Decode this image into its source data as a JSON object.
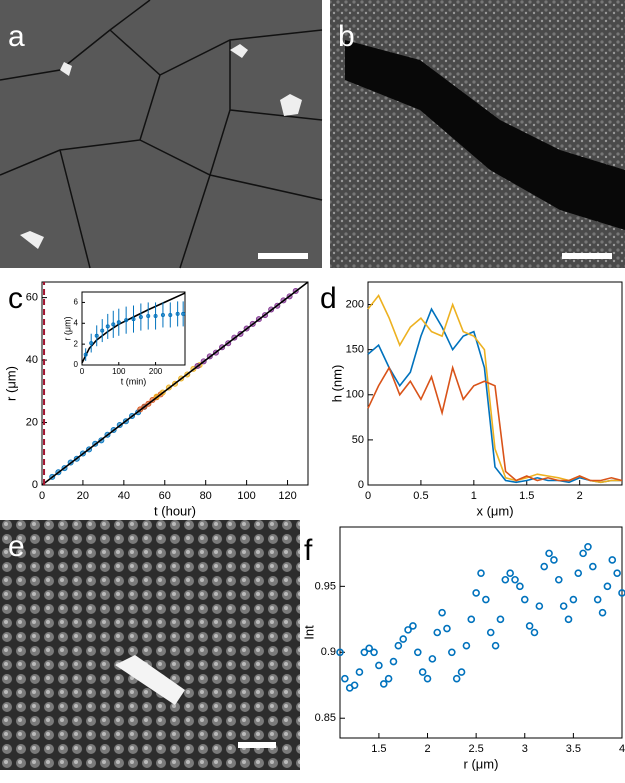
{
  "panel_labels": [
    "a",
    "b",
    "c",
    "d",
    "e",
    "f"
  ],
  "chart_data": [
    {
      "type": "scatter",
      "xlabel": "t (hour)",
      "ylabel": "r (μm)",
      "xlim": [
        0,
        130
      ],
      "xticks": [
        0,
        20,
        40,
        60,
        80,
        100,
        120
      ],
      "ylim": [
        0,
        65
      ],
      "yticks": [
        0,
        20,
        40,
        60
      ],
      "series": [
        {
          "color": "#0072bd",
          "style": "markers",
          "x": [
            5,
            8,
            11,
            14,
            17,
            20,
            23,
            26,
            29,
            32,
            35,
            38,
            41,
            44,
            47,
            50
          ],
          "values": [
            2.6,
            4.1,
            5.4,
            7.2,
            8.4,
            10.1,
            11.4,
            13.2,
            14.3,
            16.1,
            17.6,
            19.2,
            20.4,
            22.1,
            23.3,
            25.0
          ]
        },
        {
          "color": "#d95319",
          "style": "markers",
          "x": [
            48,
            50,
            52,
            54,
            56,
            58
          ],
          "values": [
            24.2,
            25.1,
            26.0,
            27.2,
            28.1,
            29.0
          ]
        },
        {
          "color": "#edb120",
          "style": "markers",
          "x": [
            56,
            59,
            62,
            65,
            68,
            71,
            74,
            77
          ],
          "values": [
            28.3,
            29.6,
            31.2,
            32.4,
            34.1,
            35.4,
            37.2,
            38.4
          ]
        },
        {
          "color": "#7e2f8e",
          "style": "markers",
          "x": [
            76,
            79,
            82,
            85,
            88,
            91,
            94,
            97,
            100,
            103,
            106,
            109,
            112,
            115,
            118,
            121,
            124
          ],
          "values": [
            38.1,
            39.6,
            41.2,
            42.4,
            44.1,
            45.4,
            47.2,
            48.4,
            50.1,
            51.6,
            53.1,
            54.4,
            56.2,
            57.4,
            59.1,
            60.4,
            62.1
          ]
        },
        {
          "color": "#000000",
          "style": "line",
          "x": [
            0,
            130
          ],
          "values": [
            0,
            65
          ]
        },
        {
          "color": "#a2142f",
          "style": "dashed",
          "x": [
            1,
            1
          ],
          "values": [
            0,
            65
          ]
        }
      ]
    },
    {
      "type": "scatter",
      "xlabel": "t (min)",
      "ylabel": "r (μm)",
      "xlim": [
        0,
        280
      ],
      "xticks": [
        0,
        100,
        200
      ],
      "ylim": [
        0,
        7
      ],
      "yticks": [
        0,
        2,
        4,
        6
      ],
      "series": [
        {
          "color": "#000000",
          "style": "line",
          "x": [
            0,
            20,
            40,
            70,
            100,
            140,
            180,
            230,
            280
          ],
          "values": [
            0.2,
            1.6,
            2.4,
            3.2,
            3.9,
            4.6,
            5.3,
            6.1,
            6.9
          ]
        },
        {
          "color": "#0072bd",
          "style": "markers",
          "x": [
            10,
            25,
            40,
            55,
            70,
            85,
            100,
            120,
            140,
            160,
            180,
            200,
            220,
            240,
            260,
            275
          ],
          "values": [
            1.0,
            2.1,
            2.8,
            3.3,
            3.7,
            3.9,
            4.1,
            4.3,
            4.4,
            4.6,
            4.7,
            4.7,
            4.8,
            4.8,
            4.9,
            4.9
          ],
          "errors": [
            0.6,
            0.9,
            1.0,
            1.1,
            1.2,
            1.3,
            1.3,
            1.3,
            1.3,
            1.3,
            1.3,
            1.3,
            1.2,
            1.2,
            1.2,
            1.2
          ]
        }
      ]
    },
    {
      "type": "line",
      "xlabel": "x (μm)",
      "ylabel": "h (nm)",
      "xlim": [
        0,
        2.4
      ],
      "xticks": [
        0,
        0.5,
        1,
        1.5,
        2
      ],
      "ylim": [
        0,
        225
      ],
      "yticks": [
        0,
        50,
        100,
        150,
        200
      ],
      "series": [
        {
          "color": "#0072bd",
          "style": "line",
          "x": [
            0,
            0.1,
            0.2,
            0.3,
            0.4,
            0.5,
            0.6,
            0.7,
            0.8,
            0.9,
            1.0,
            1.1,
            1.2,
            1.3,
            1.4,
            1.5,
            1.6,
            1.7,
            1.8,
            1.9,
            2.0,
            2.1,
            2.2,
            2.3,
            2.4
          ],
          "values": [
            145,
            155,
            130,
            110,
            125,
            165,
            195,
            175,
            150,
            165,
            170,
            130,
            20,
            5,
            3,
            5,
            8,
            5,
            5,
            3,
            8,
            5,
            3,
            5,
            5
          ]
        },
        {
          "color": "#edb120",
          "style": "line",
          "x": [
            0,
            0.1,
            0.2,
            0.3,
            0.4,
            0.5,
            0.6,
            0.7,
            0.8,
            0.9,
            1.0,
            1.1,
            1.2,
            1.3,
            1.4,
            1.5,
            1.6,
            1.7,
            1.8,
            1.9,
            2.0,
            2.1,
            2.2,
            2.3,
            2.4
          ],
          "values": [
            195,
            210,
            185,
            155,
            175,
            185,
            170,
            165,
            200,
            170,
            165,
            150,
            40,
            8,
            5,
            8,
            12,
            10,
            8,
            5,
            10,
            5,
            3,
            5,
            5
          ]
        },
        {
          "color": "#d95319",
          "style": "line",
          "x": [
            0,
            0.1,
            0.2,
            0.3,
            0.4,
            0.5,
            0.6,
            0.7,
            0.8,
            0.9,
            1.0,
            1.1,
            1.2,
            1.3,
            1.4,
            1.5,
            1.6,
            1.7,
            1.8,
            1.9,
            2.0,
            2.1,
            2.2,
            2.3,
            2.4
          ],
          "values": [
            85,
            110,
            130,
            100,
            115,
            95,
            120,
            80,
            130,
            95,
            110,
            115,
            110,
            15,
            5,
            10,
            5,
            8,
            5,
            5,
            10,
            5,
            5,
            8,
            5
          ]
        }
      ]
    },
    {
      "type": "scatter",
      "xlabel": "r (μm)",
      "ylabel": "Int",
      "xlim": [
        1.1,
        4.0
      ],
      "xticks": [
        1.5,
        2,
        2.5,
        3,
        3.5,
        4
      ],
      "ylim": [
        0.835,
        0.995
      ],
      "yticks": [
        0.85,
        0.9,
        0.95
      ],
      "series": [
        {
          "color": "#0072bd",
          "style": "open-markers",
          "x": [
            1.1,
            1.15,
            1.2,
            1.25,
            1.3,
            1.35,
            1.4,
            1.45,
            1.5,
            1.55,
            1.6,
            1.65,
            1.7,
            1.75,
            1.8,
            1.85,
            1.9,
            1.95,
            2.0,
            2.05,
            2.1,
            2.15,
            2.2,
            2.25,
            2.3,
            2.35,
            2.4,
            2.45,
            2.5,
            2.55,
            2.6,
            2.65,
            2.7,
            2.75,
            2.8,
            2.85,
            2.9,
            2.95,
            3.0,
            3.05,
            3.1,
            3.15,
            3.2,
            3.25,
            3.3,
            3.35,
            3.4,
            3.45,
            3.5,
            3.55,
            3.6,
            3.65,
            3.7,
            3.75,
            3.8,
            3.85,
            3.9,
            3.95,
            4.0
          ],
          "values": [
            0.9,
            0.88,
            0.873,
            0.875,
            0.885,
            0.9,
            0.903,
            0.9,
            0.89,
            0.876,
            0.88,
            0.893,
            0.905,
            0.91,
            0.917,
            0.92,
            0.9,
            0.885,
            0.88,
            0.895,
            0.915,
            0.93,
            0.918,
            0.9,
            0.88,
            0.885,
            0.905,
            0.925,
            0.945,
            0.96,
            0.94,
            0.915,
            0.905,
            0.925,
            0.955,
            0.96,
            0.955,
            0.95,
            0.94,
            0.92,
            0.915,
            0.935,
            0.965,
            0.975,
            0.97,
            0.955,
            0.935,
            0.925,
            0.94,
            0.96,
            0.975,
            0.98,
            0.965,
            0.94,
            0.93,
            0.95,
            0.97,
            0.96,
            0.945
          ]
        }
      ]
    }
  ]
}
